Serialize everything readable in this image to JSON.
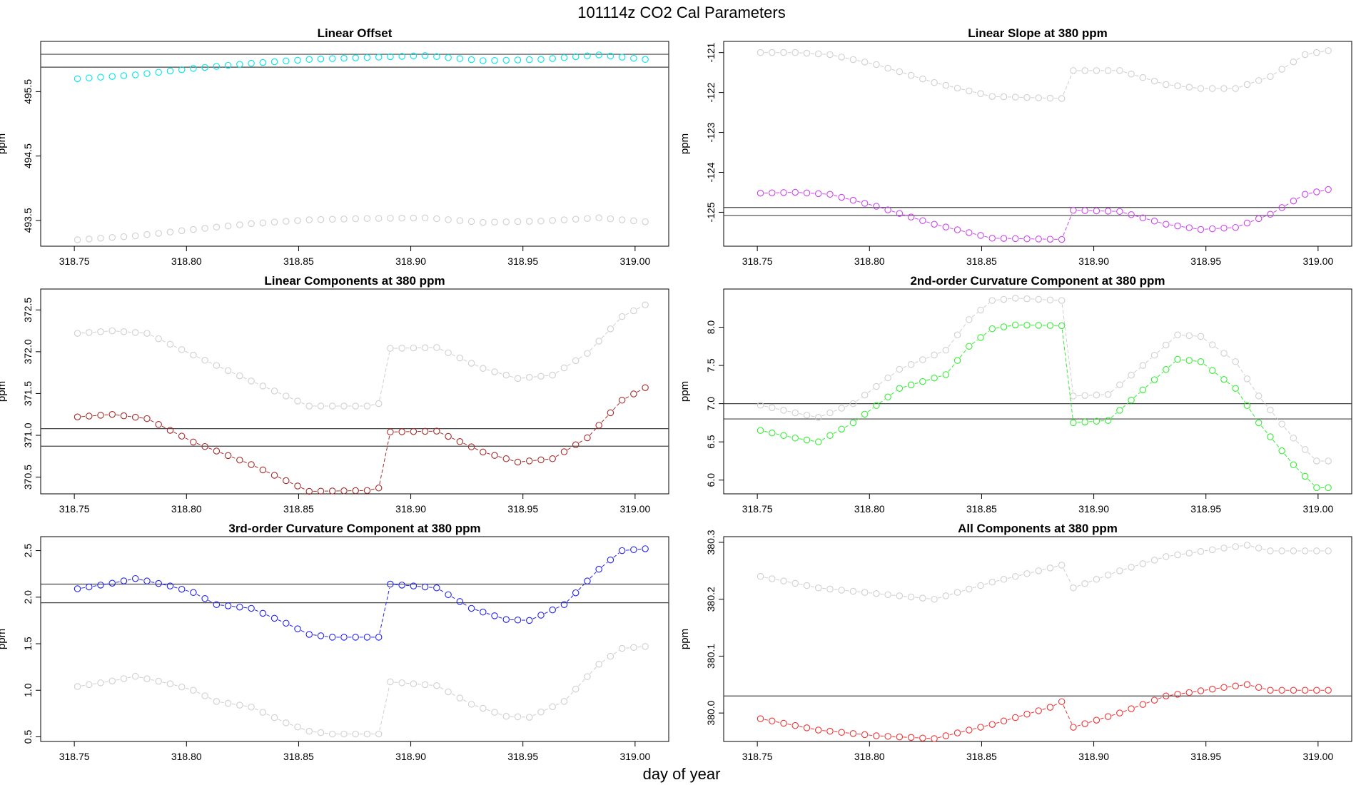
{
  "figure": {
    "title": "101114z   CO2 Cal Parameters",
    "xlabel": "day of year"
  },
  "chart_data": [
    {
      "type": "scatter",
      "title": "Linear Offset",
      "xlabel": "",
      "ylabel": "ppm",
      "xlim": [
        318.735,
        319.015
      ],
      "ylim": [
        493.1,
        496.28
      ],
      "xticks": [
        318.75,
        318.8,
        318.85,
        318.9,
        318.95,
        319.0
      ],
      "xtick_labels": [
        "318.75",
        "318.80",
        "318.85",
        "318.90",
        "318.95",
        "319.00"
      ],
      "yticks": [
        493.5,
        494.5,
        495.5
      ],
      "ytick_labels": [
        "493.5",
        "494.5",
        "495.5"
      ],
      "hlines": [
        496.08,
        495.88
      ],
      "x_start": 318.7514,
      "x_step": 0.005166,
      "n_points": 50,
      "connect": false,
      "series": [
        {
          "name": "offset",
          "color": "#00e5ee",
          "keys": [
            [
              0,
              495.7
            ],
            [
              5,
              495.76
            ],
            [
              10,
              495.86
            ],
            [
              15,
              495.94
            ],
            [
              20,
              496.0
            ],
            [
              25,
              496.03
            ],
            [
              30,
              496.06
            ],
            [
              35,
              495.98
            ],
            [
              40,
              496.0
            ],
            [
              45,
              496.07
            ],
            [
              49,
              496.0
            ]
          ]
        },
        {
          "name": "offset-ref",
          "color": "#cfcfcf",
          "keys": [
            [
              0,
              493.2
            ],
            [
              5,
              493.26
            ],
            [
              10,
              493.36
            ],
            [
              15,
              493.45
            ],
            [
              20,
              493.51
            ],
            [
              25,
              493.53
            ],
            [
              30,
              493.54
            ],
            [
              35,
              493.47
            ],
            [
              40,
              493.49
            ],
            [
              45,
              493.54
            ],
            [
              49,
              493.48
            ]
          ]
        }
      ]
    },
    {
      "type": "scatter",
      "title": "Linear Slope at 380 ppm",
      "xlabel": "",
      "ylabel": "ppm",
      "xlim": [
        318.735,
        319.015
      ],
      "ylim": [
        -125.85,
        -120.72
      ],
      "xticks": [
        318.75,
        318.8,
        318.85,
        318.9,
        318.95,
        319.0
      ],
      "xtick_labels": [
        "318.75",
        "318.80",
        "318.85",
        "318.90",
        "318.95",
        "319.00"
      ],
      "yticks": [
        -121,
        -122,
        -123,
        -124,
        -125
      ],
      "ytick_labels": [
        "-121",
        "-122",
        "-123",
        "-124",
        "-125"
      ],
      "hlines": [
        -124.88,
        -125.08
      ],
      "x_start": 318.7514,
      "x_step": 0.005166,
      "n_points": 50,
      "connect": true,
      "series": [
        {
          "name": "slope-ref",
          "color": "#cfcfcf",
          "keys": [
            [
              0,
              -121.0
            ],
            [
              3,
              -121.0
            ],
            [
              6,
              -121.05
            ],
            [
              10,
              -121.3
            ],
            [
              15,
              -121.75
            ],
            [
              20,
              -122.1
            ],
            [
              26,
              -122.15
            ],
            [
              27,
              -121.45
            ],
            [
              31,
              -121.45
            ],
            [
              35,
              -121.8
            ],
            [
              38,
              -121.9
            ],
            [
              41,
              -121.9
            ],
            [
              44,
              -121.6
            ],
            [
              47,
              -121.05
            ],
            [
              49,
              -120.95
            ]
          ]
        },
        {
          "name": "slope",
          "color": "#cc44ee",
          "keys": [
            [
              0,
              -124.52
            ],
            [
              3,
              -124.5
            ],
            [
              6,
              -124.55
            ],
            [
              10,
              -124.85
            ],
            [
              15,
              -125.3
            ],
            [
              20,
              -125.65
            ],
            [
              26,
              -125.68
            ],
            [
              27,
              -124.95
            ],
            [
              31,
              -124.98
            ],
            [
              35,
              -125.3
            ],
            [
              38,
              -125.43
            ],
            [
              41,
              -125.38
            ],
            [
              44,
              -125.05
            ],
            [
              47,
              -124.55
            ],
            [
              49,
              -124.43
            ]
          ]
        }
      ]
    },
    {
      "type": "scatter",
      "title": "Linear Components at 380 ppm",
      "xlabel": "",
      "ylabel": "ppm",
      "xlim": [
        318.735,
        319.015
      ],
      "ylim": [
        370.3,
        372.75
      ],
      "xticks": [
        318.75,
        318.8,
        318.85,
        318.9,
        318.95,
        319.0
      ],
      "xtick_labels": [
        "318.75",
        "318.80",
        "318.85",
        "318.90",
        "318.95",
        "319.00"
      ],
      "yticks": [
        370.5,
        371.0,
        371.5,
        372.0,
        372.5
      ],
      "ytick_labels": [
        "370.5",
        "371.0",
        "371.5",
        "372.0",
        "372.5"
      ],
      "hlines": [
        371.08,
        370.87
      ],
      "x_start": 318.7514,
      "x_step": 0.005166,
      "n_points": 50,
      "connect": true,
      "series": [
        {
          "name": "linear-ref",
          "color": "#cfcfcf",
          "keys": [
            [
              0,
              372.22
            ],
            [
              3,
              372.25
            ],
            [
              6,
              372.22
            ],
            [
              10,
              371.96
            ],
            [
              15,
              371.65
            ],
            [
              20,
              371.35
            ],
            [
              25,
              371.35
            ],
            [
              26,
              371.38
            ],
            [
              27,
              372.04
            ],
            [
              31,
              372.05
            ],
            [
              35,
              371.8
            ],
            [
              38,
              371.68
            ],
            [
              41,
              371.72
            ],
            [
              44,
              371.98
            ],
            [
              47,
              372.42
            ],
            [
              49,
              372.56
            ]
          ]
        },
        {
          "name": "linear",
          "color": "#a52a2a",
          "keys": [
            [
              0,
              371.22
            ],
            [
              3,
              371.25
            ],
            [
              6,
              371.2
            ],
            [
              10,
              370.92
            ],
            [
              15,
              370.65
            ],
            [
              20,
              370.33
            ],
            [
              25,
              370.34
            ],
            [
              26,
              370.37
            ],
            [
              27,
              371.04
            ],
            [
              31,
              371.05
            ],
            [
              35,
              370.8
            ],
            [
              38,
              370.68
            ],
            [
              41,
              370.72
            ],
            [
              44,
              370.97
            ],
            [
              47,
              371.42
            ],
            [
              49,
              371.57
            ]
          ]
        }
      ]
    },
    {
      "type": "scatter",
      "title": "2nd-order Curvature Component at 380 ppm",
      "xlabel": "",
      "ylabel": "ppm",
      "xlim": [
        318.735,
        319.015
      ],
      "ylim": [
        5.82,
        8.5
      ],
      "xticks": [
        318.75,
        318.8,
        318.85,
        318.9,
        318.95,
        319.0
      ],
      "xtick_labels": [
        "318.75",
        "318.80",
        "318.85",
        "318.90",
        "318.95",
        "319.00"
      ],
      "yticks": [
        6.0,
        6.5,
        7.0,
        7.5,
        8.0
      ],
      "ytick_labels": [
        "6.0",
        "6.5",
        "7.0",
        "7.5",
        "8.0"
      ],
      "hlines": [
        7.0,
        6.8
      ],
      "x_start": 318.7514,
      "x_step": 0.005166,
      "n_points": 50,
      "connect": true,
      "series": [
        {
          "name": "curv2-ref",
          "color": "#cfcfcf",
          "keys": [
            [
              0,
              6.98
            ],
            [
              3,
              6.88
            ],
            [
              5,
              6.82
            ],
            [
              8,
              7.0
            ],
            [
              12,
              7.45
            ],
            [
              16,
              7.7
            ],
            [
              18,
              8.1
            ],
            [
              20,
              8.35
            ],
            [
              22,
              8.38
            ],
            [
              26,
              8.35
            ],
            [
              27,
              7.1
            ],
            [
              30,
              7.12
            ],
            [
              33,
              7.5
            ],
            [
              36,
              7.9
            ],
            [
              38,
              7.88
            ],
            [
              41,
              7.55
            ],
            [
              43,
              7.1
            ],
            [
              46,
              6.55
            ],
            [
              48,
              6.25
            ],
            [
              49,
              6.25
            ]
          ]
        },
        {
          "name": "curv2",
          "color": "#33ee33",
          "keys": [
            [
              0,
              6.65
            ],
            [
              3,
              6.55
            ],
            [
              5,
              6.5
            ],
            [
              8,
              6.75
            ],
            [
              12,
              7.2
            ],
            [
              16,
              7.38
            ],
            [
              18,
              7.75
            ],
            [
              20,
              7.98
            ],
            [
              22,
              8.03
            ],
            [
              26,
              8.02
            ],
            [
              27,
              6.75
            ],
            [
              30,
              6.78
            ],
            [
              33,
              7.18
            ],
            [
              36,
              7.58
            ],
            [
              38,
              7.55
            ],
            [
              41,
              7.2
            ],
            [
              43,
              6.75
            ],
            [
              46,
              6.2
            ],
            [
              48,
              5.9
            ],
            [
              49,
              5.9
            ]
          ]
        }
      ]
    },
    {
      "type": "scatter",
      "title": "3rd-order Curvature Component at 380 ppm",
      "xlabel": "",
      "ylabel": "ppm",
      "xlim": [
        318.735,
        319.015
      ],
      "ylim": [
        0.45,
        2.65
      ],
      "xticks": [
        318.75,
        318.8,
        318.85,
        318.9,
        318.95,
        319.0
      ],
      "xtick_labels": [
        "318.75",
        "318.80",
        "318.85",
        "318.90",
        "318.95",
        "319.00"
      ],
      "yticks": [
        0.5,
        1.0,
        1.5,
        2.0,
        2.5
      ],
      "ytick_labels": [
        "0.5",
        "1.0",
        "1.5",
        "2.0",
        "2.5"
      ],
      "hlines": [
        2.14,
        1.94
      ],
      "x_start": 318.7514,
      "x_step": 0.005166,
      "n_points": 50,
      "connect": true,
      "series": [
        {
          "name": "curv3",
          "color": "#2222ee",
          "keys": [
            [
              0,
              2.09
            ],
            [
              3,
              2.15
            ],
            [
              5,
              2.2
            ],
            [
              8,
              2.12
            ],
            [
              10,
              2.05
            ],
            [
              12,
              1.92
            ],
            [
              15,
              1.88
            ],
            [
              18,
              1.72
            ],
            [
              20,
              1.6
            ],
            [
              22,
              1.57
            ],
            [
              26,
              1.57
            ],
            [
              27,
              2.14
            ],
            [
              31,
              2.1
            ],
            [
              34,
              1.88
            ],
            [
              37,
              1.76
            ],
            [
              39,
              1.75
            ],
            [
              42,
              1.92
            ],
            [
              45,
              2.3
            ],
            [
              47,
              2.5
            ],
            [
              49,
              2.52
            ]
          ]
        },
        {
          "name": "curv3-ref",
          "color": "#cfcfcf",
          "keys": [
            [
              0,
              1.04
            ],
            [
              3,
              1.1
            ],
            [
              5,
              1.15
            ],
            [
              8,
              1.07
            ],
            [
              10,
              1.0
            ],
            [
              12,
              0.88
            ],
            [
              15,
              0.82
            ],
            [
              18,
              0.65
            ],
            [
              20,
              0.56
            ],
            [
              22,
              0.53
            ],
            [
              26,
              0.53
            ],
            [
              27,
              1.09
            ],
            [
              31,
              1.05
            ],
            [
              34,
              0.85
            ],
            [
              37,
              0.72
            ],
            [
              39,
              0.71
            ],
            [
              42,
              0.88
            ],
            [
              45,
              1.28
            ],
            [
              47,
              1.45
            ],
            [
              49,
              1.47
            ]
          ]
        }
      ]
    },
    {
      "type": "scatter",
      "title": "All Components at 380 ppm",
      "xlabel": "",
      "ylabel": "ppm",
      "xlim": [
        318.735,
        319.015
      ],
      "ylim": [
        379.95,
        380.31
      ],
      "xticks": [
        318.75,
        318.8,
        318.85,
        318.9,
        318.95,
        319.0
      ],
      "xtick_labels": [
        "318.75",
        "318.80",
        "318.85",
        "318.90",
        "318.95",
        "319.00"
      ],
      "yticks": [
        380.0,
        380.1,
        380.2,
        380.3
      ],
      "ytick_labels": [
        "380.0",
        "380.1",
        "380.2",
        "380.3"
      ],
      "hlines": [
        380.03
      ],
      "x_start": 318.7514,
      "x_step": 0.005166,
      "n_points": 50,
      "connect": true,
      "series": [
        {
          "name": "all-ref",
          "color": "#cfcfcf",
          "keys": [
            [
              0,
              380.24
            ],
            [
              5,
              380.22
            ],
            [
              10,
              380.21
            ],
            [
              15,
              380.2
            ],
            [
              20,
              380.23
            ],
            [
              25,
              380.255
            ],
            [
              26,
              380.26
            ],
            [
              27,
              380.22
            ],
            [
              31,
              380.25
            ],
            [
              35,
              380.275
            ],
            [
              40,
              380.29
            ],
            [
              42,
              380.295
            ],
            [
              44,
              380.285
            ],
            [
              49,
              380.285
            ]
          ]
        },
        {
          "name": "all",
          "color": "#ee3333",
          "keys": [
            [
              0,
              379.99
            ],
            [
              5,
              379.97
            ],
            [
              10,
              379.96
            ],
            [
              15,
              379.955
            ],
            [
              20,
              379.98
            ],
            [
              25,
              380.01
            ],
            [
              26,
              380.02
            ],
            [
              27,
              379.975
            ],
            [
              31,
              380.0
            ],
            [
              35,
              380.03
            ],
            [
              40,
              380.045
            ],
            [
              42,
              380.05
            ],
            [
              44,
              380.04
            ],
            [
              49,
              380.04
            ]
          ]
        }
      ]
    }
  ]
}
